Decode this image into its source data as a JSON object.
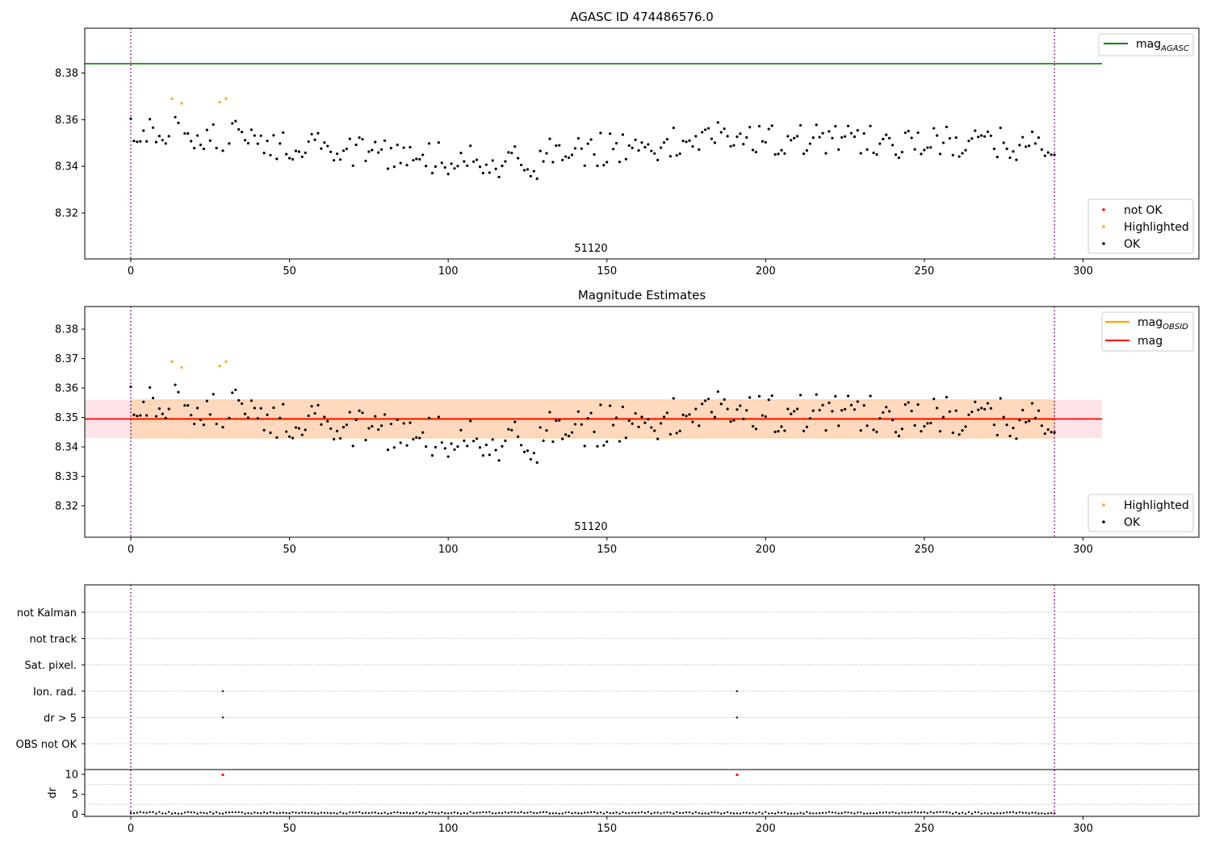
{
  "chart_data": [
    {
      "type": "scatter",
      "title": "AGASC ID 474486576.0",
      "annotation": "51120",
      "xlim": [
        -14.5,
        336.5
      ],
      "ylim": [
        8.3003,
        8.3992
      ],
      "xticks": [
        0,
        50,
        100,
        150,
        200,
        250,
        300
      ],
      "yticks": [
        8.32,
        8.34,
        8.36,
        8.38
      ],
      "ytick_labels": [
        "8.32",
        "8.34",
        "8.36",
        "8.38"
      ],
      "vlines": [
        0,
        291
      ],
      "hline": {
        "label": "mag",
        "label_sub": "AGASC",
        "y": 8.384,
        "x": [
          -14.5,
          306
        ],
        "color": "#008000"
      },
      "legend_points": [
        {
          "label": "not OK",
          "color": "#ff0000"
        },
        {
          "label": "Highlighted",
          "color": "#ffa500"
        },
        {
          "label": "OK",
          "color": "#000000"
        }
      ]
    },
    {
      "type": "scatter",
      "title": "Magnitude Estimates",
      "annotation": "51120",
      "xlim": [
        -14.5,
        336.5
      ],
      "ylim": [
        8.3093,
        8.3877
      ],
      "xticks": [
        0,
        50,
        100,
        150,
        200,
        250,
        300
      ],
      "yticks": [
        8.32,
        8.33,
        8.34,
        8.35,
        8.36,
        8.37,
        8.38
      ],
      "ytick_labels": [
        "8.32",
        "8.33",
        "8.34",
        "8.35",
        "8.36",
        "8.37",
        "8.38"
      ],
      "vlines": [
        0,
        291
      ],
      "band": {
        "y": [
          8.343,
          8.356
        ],
        "x": [
          -14.5,
          306
        ]
      },
      "obs_band": {
        "y": [
          8.343,
          8.356
        ],
        "x": [
          0,
          291
        ]
      },
      "mag_line": {
        "label": "mag",
        "y": 8.3495,
        "x": [
          -14.5,
          306
        ],
        "color": "#ff0000"
      },
      "obsid_line": {
        "label": "mag",
        "label_sub": "OBSID",
        "y": 8.3495,
        "x": [
          0,
          291
        ],
        "color": "#ffa500"
      },
      "legend_points": [
        {
          "label": "Highlighted",
          "color": "#ffa500"
        },
        {
          "label": "OK",
          "color": "#000000"
        }
      ]
    },
    {
      "type": "scatter",
      "title": "",
      "categories": [
        "not Kalman",
        "not track",
        "Sat. pixel.",
        "Ion. rad.",
        "dr > 5",
        "OBS not OK"
      ],
      "flags": [
        {
          "category": "Ion. rad.",
          "x": [
            29,
            191
          ]
        },
        {
          "category": "dr > 5",
          "x": [
            29,
            191
          ]
        }
      ],
      "dr": {
        "ylabel": "dr",
        "ylim": [
          -0.5,
          11.2
        ],
        "yticks": [
          0,
          5,
          10
        ],
        "ytick_labels": [
          "0",
          "5",
          "10"
        ],
        "outliers": [
          {
            "x": 29,
            "y": 9.9
          },
          {
            "x": 191,
            "y": 9.9
          }
        ]
      },
      "xlim": [
        -14.5,
        336.5
      ],
      "xticks": [
        0,
        50,
        100,
        150,
        200,
        250,
        300
      ],
      "vlines": [
        0,
        291
      ]
    }
  ],
  "series_note_tick_labels": {
    "x": [
      "0",
      "50",
      "100",
      "150",
      "200",
      "250",
      "300"
    ]
  },
  "seeds": {
    "mag": 51120,
    "dr": 7
  }
}
